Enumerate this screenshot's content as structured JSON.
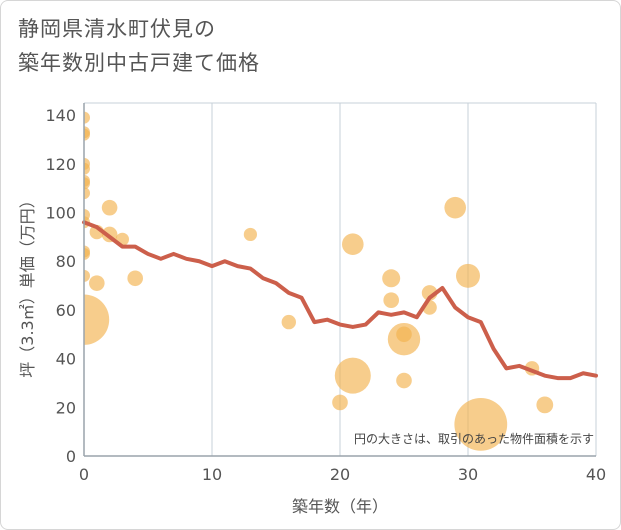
{
  "title_lines": [
    "静岡県清水町伏見の",
    "築年数別中古戸建て価格"
  ],
  "colors": {
    "bubble": "#f2b24e",
    "line": "#cc5f4b",
    "grid": "#c7d0d8",
    "axis": "#9aa3ab"
  },
  "chart_data": {
    "type": "scatter",
    "title": "静岡県清水町伏見の 築年数別中古戸建て価格",
    "xlabel": "築年数（年）",
    "ylabel": "坪（3.3㎡）単価（万円）",
    "xlim": [
      0,
      40
    ],
    "ylim": [
      0,
      145
    ],
    "xticks": [
      0,
      10,
      20,
      30,
      40
    ],
    "yticks": [
      0,
      20,
      40,
      60,
      80,
      100,
      120,
      140
    ],
    "note": "円の大きさは、取引のあった物件面積を示す",
    "bubbles": [
      {
        "x": 0,
        "y": 139,
        "s": 1.0
      },
      {
        "x": 0,
        "y": 133,
        "s": 1.0
      },
      {
        "x": 0,
        "y": 132,
        "s": 1.0
      },
      {
        "x": 0,
        "y": 120,
        "s": 1.0
      },
      {
        "x": 0,
        "y": 118,
        "s": 1.0
      },
      {
        "x": 0,
        "y": 113,
        "s": 1.0
      },
      {
        "x": 0,
        "y": 112,
        "s": 1.0
      },
      {
        "x": 0,
        "y": 108,
        "s": 1.0
      },
      {
        "x": 0,
        "y": 99,
        "s": 1.0
      },
      {
        "x": 0,
        "y": 96,
        "s": 1.0
      },
      {
        "x": 0,
        "y": 84,
        "s": 1.0
      },
      {
        "x": 0,
        "y": 83,
        "s": 1.0
      },
      {
        "x": 0,
        "y": 74,
        "s": 1.0
      },
      {
        "x": 0,
        "y": 56,
        "s": 4.2
      },
      {
        "x": 1,
        "y": 71,
        "s": 1.3
      },
      {
        "x": 1,
        "y": 92,
        "s": 1.2
      },
      {
        "x": 2,
        "y": 102,
        "s": 1.3
      },
      {
        "x": 2,
        "y": 91,
        "s": 1.3
      },
      {
        "x": 3,
        "y": 89,
        "s": 1.1
      },
      {
        "x": 4,
        "y": 73,
        "s": 1.3
      },
      {
        "x": 13,
        "y": 91,
        "s": 1.1
      },
      {
        "x": 16,
        "y": 55,
        "s": 1.2
      },
      {
        "x": 20,
        "y": 22,
        "s": 1.3
      },
      {
        "x": 21,
        "y": 87,
        "s": 1.8
      },
      {
        "x": 21,
        "y": 33,
        "s": 3.0
      },
      {
        "x": 24,
        "y": 73,
        "s": 1.5
      },
      {
        "x": 24,
        "y": 64,
        "s": 1.3
      },
      {
        "x": 25,
        "y": 50,
        "s": 1.3
      },
      {
        "x": 25,
        "y": 48,
        "s": 2.7
      },
      {
        "x": 25,
        "y": 31,
        "s": 1.3
      },
      {
        "x": 27,
        "y": 67,
        "s": 1.3
      },
      {
        "x": 27,
        "y": 61,
        "s": 1.2
      },
      {
        "x": 29,
        "y": 102,
        "s": 1.8
      },
      {
        "x": 30,
        "y": 74,
        "s": 2.0
      },
      {
        "x": 31,
        "y": 13,
        "s": 4.4
      },
      {
        "x": 35,
        "y": 36,
        "s": 1.2
      },
      {
        "x": 36,
        "y": 21,
        "s": 1.4
      }
    ],
    "line": {
      "x": [
        0,
        1,
        2,
        3,
        4,
        5,
        6,
        7,
        8,
        9,
        10,
        11,
        12,
        13,
        14,
        15,
        16,
        17,
        18,
        19,
        20,
        21,
        22,
        23,
        24,
        25,
        26,
        27,
        28,
        29,
        30,
        31,
        32,
        33,
        34,
        35,
        36,
        37,
        38,
        39,
        40
      ],
      "y": [
        96,
        94,
        90,
        86,
        86,
        83,
        81,
        83,
        81,
        80,
        78,
        80,
        78,
        77,
        73,
        71,
        67,
        65,
        55,
        56,
        54,
        53,
        54,
        59,
        58,
        59,
        57,
        65,
        69,
        61,
        57,
        55,
        44,
        36,
        37,
        35,
        33,
        32,
        32,
        34,
        33
      ]
    }
  }
}
